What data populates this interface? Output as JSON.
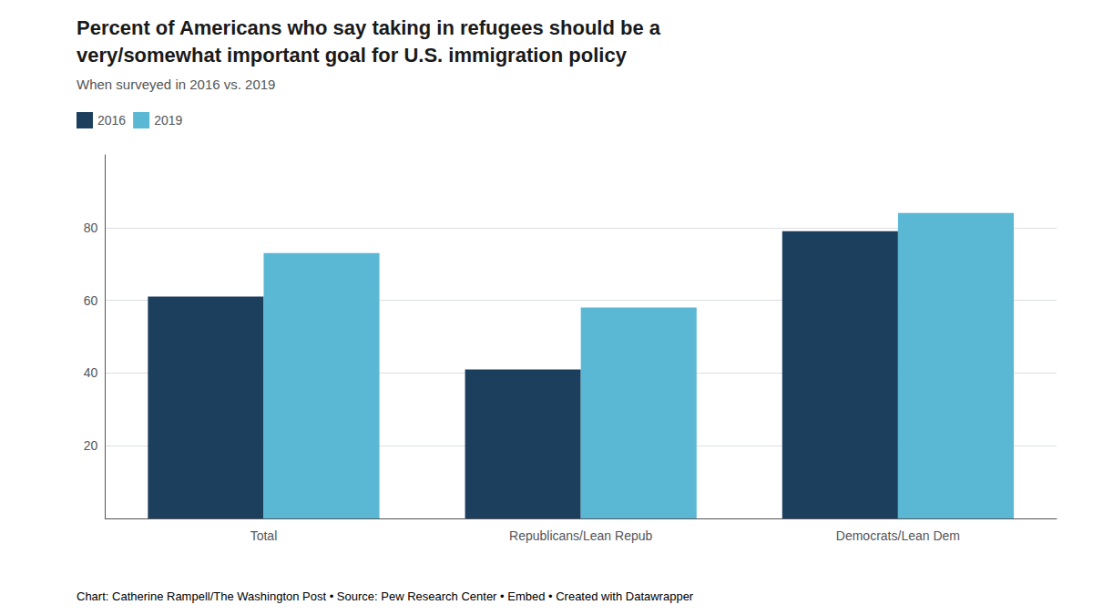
{
  "chart_data": {
    "type": "bar",
    "title": "Percent of Americans who say taking in refugees should be a\nvery/somewhat important goal for U.S. immigration policy",
    "subtitle": "When surveyed in 2016 vs. 2019",
    "categories": [
      "Total",
      "Republicans/Lean Repub",
      "Democrats/Lean Dem"
    ],
    "series": [
      {
        "name": "2016",
        "color": "#1d3f5e",
        "values": [
          61,
          41,
          79
        ]
      },
      {
        "name": "2019",
        "color": "#5bb8d4",
        "values": [
          73,
          58,
          84
        ]
      }
    ],
    "ylim": [
      0,
      100
    ],
    "yticks": [
      20,
      40,
      60,
      80
    ],
    "grid": true,
    "legend": "top left",
    "footer": [
      {
        "text": "Chart: Catherine Rampell/The Washington Post • Source: Pew Research Center • ",
        "color": "#888888"
      },
      {
        "text": "Embed",
        "color": "#4a90c4"
      },
      {
        "text": " • Created with ",
        "color": "#888888"
      },
      {
        "text": "Datawrapper",
        "color": "#4a90c4"
      }
    ]
  }
}
